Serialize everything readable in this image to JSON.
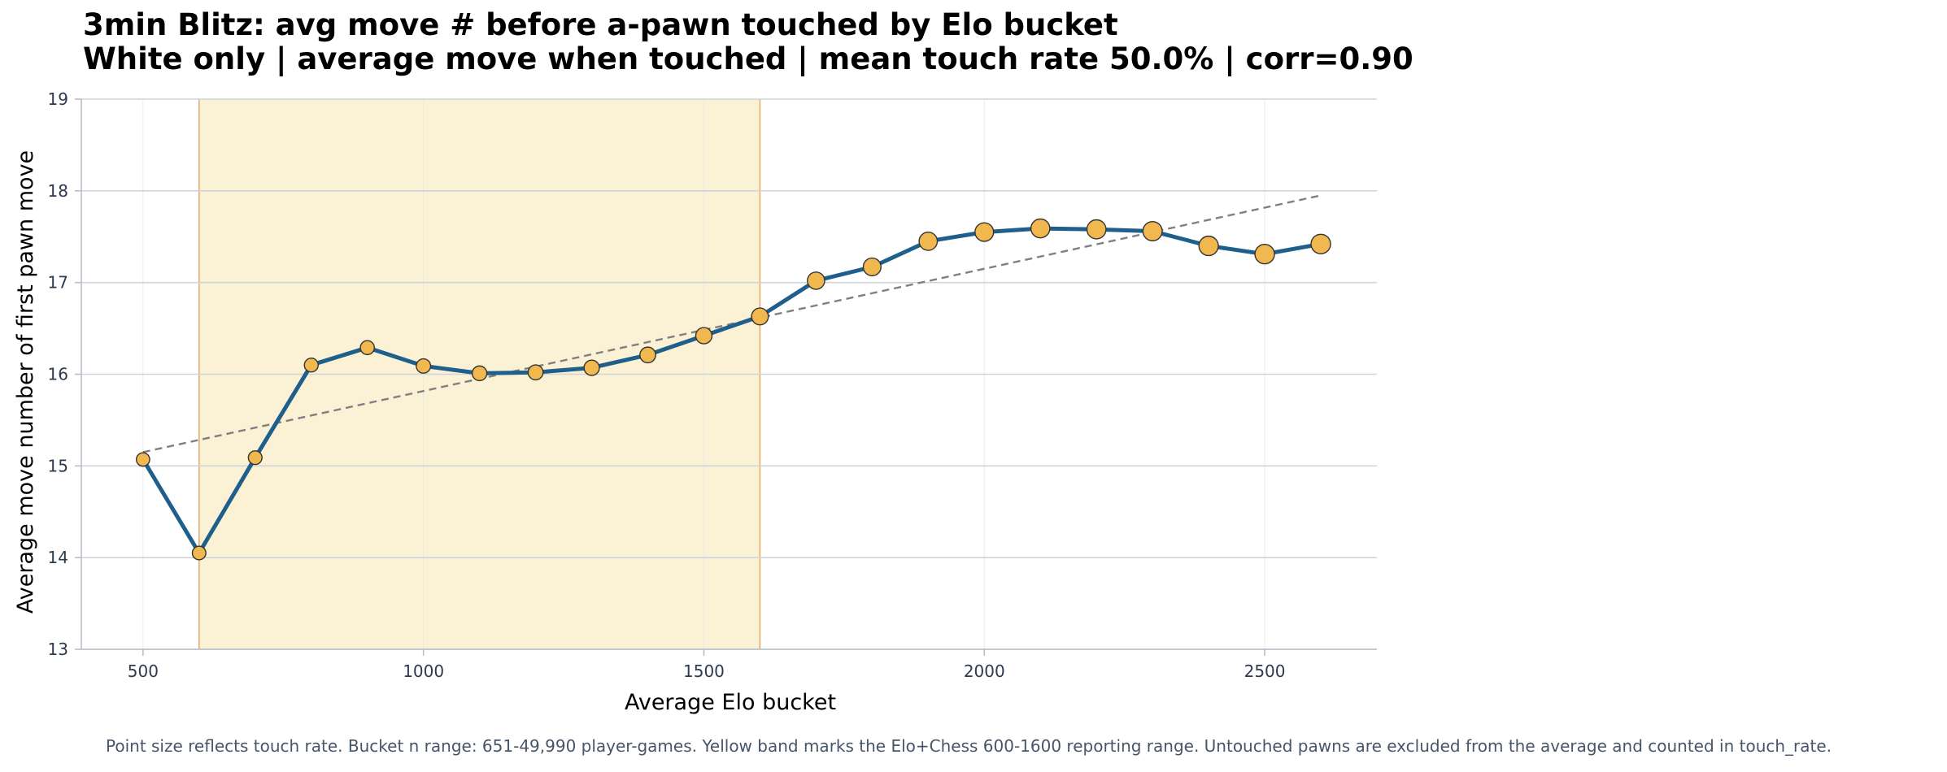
{
  "chart_data": {
    "type": "line",
    "title": "3min Blitz: avg move # before a-pawn touched by Elo bucket",
    "subtitle": "White only | average move when touched | mean touch rate 50.0% | corr=0.90",
    "xlabel": "Average Elo bucket",
    "ylabel": "Average move number of first pawn move",
    "xlim": [
      390,
      2700
    ],
    "ylim": [
      13,
      19
    ],
    "xticks": [
      500,
      1000,
      1500,
      2000,
      2500
    ],
    "yticks": [
      13,
      14,
      15,
      16,
      17,
      18,
      19
    ],
    "grid": true,
    "band": {
      "x_start": 600,
      "x_end": 1600,
      "color": "#fbf1d5",
      "edge_color": "#e0b070"
    },
    "series": [
      {
        "x": [
          500,
          600,
          700,
          800,
          900,
          1000,
          1100,
          1200,
          1300,
          1400,
          1500,
          1600,
          1700,
          1800,
          1900,
          2000,
          2100,
          2200,
          2300,
          2400,
          2500,
          2600
        ],
        "values": [
          15.07,
          14.05,
          15.09,
          16.1,
          16.29,
          16.09,
          16.01,
          16.02,
          16.07,
          16.21,
          16.42,
          16.63,
          17.02,
          17.17,
          17.45,
          17.55,
          17.59,
          17.58,
          17.56,
          17.4,
          17.31,
          17.42
        ],
        "touch_rate_relative": [
          0.05,
          0.08,
          0.1,
          0.12,
          0.15,
          0.2,
          0.25,
          0.3,
          0.35,
          0.42,
          0.5,
          0.58,
          0.65,
          0.72,
          0.8,
          0.85,
          0.9,
          0.93,
          0.96,
          0.98,
          1.0,
          1.0
        ],
        "line_color": "#1f5f8b",
        "marker_color": "#f0b84f"
      }
    ],
    "trendline": {
      "x": [
        500,
        2600
      ],
      "y": [
        15.15,
        17.95
      ],
      "color": "#808080",
      "style": "dashed"
    }
  },
  "footnote": "Point size reflects touch rate. Bucket n range: 651-49,990 player-games. Yellow band marks the Elo+Chess 600-1600 reporting range. Untouched pawns are excluded from the average and counted in touch_rate."
}
